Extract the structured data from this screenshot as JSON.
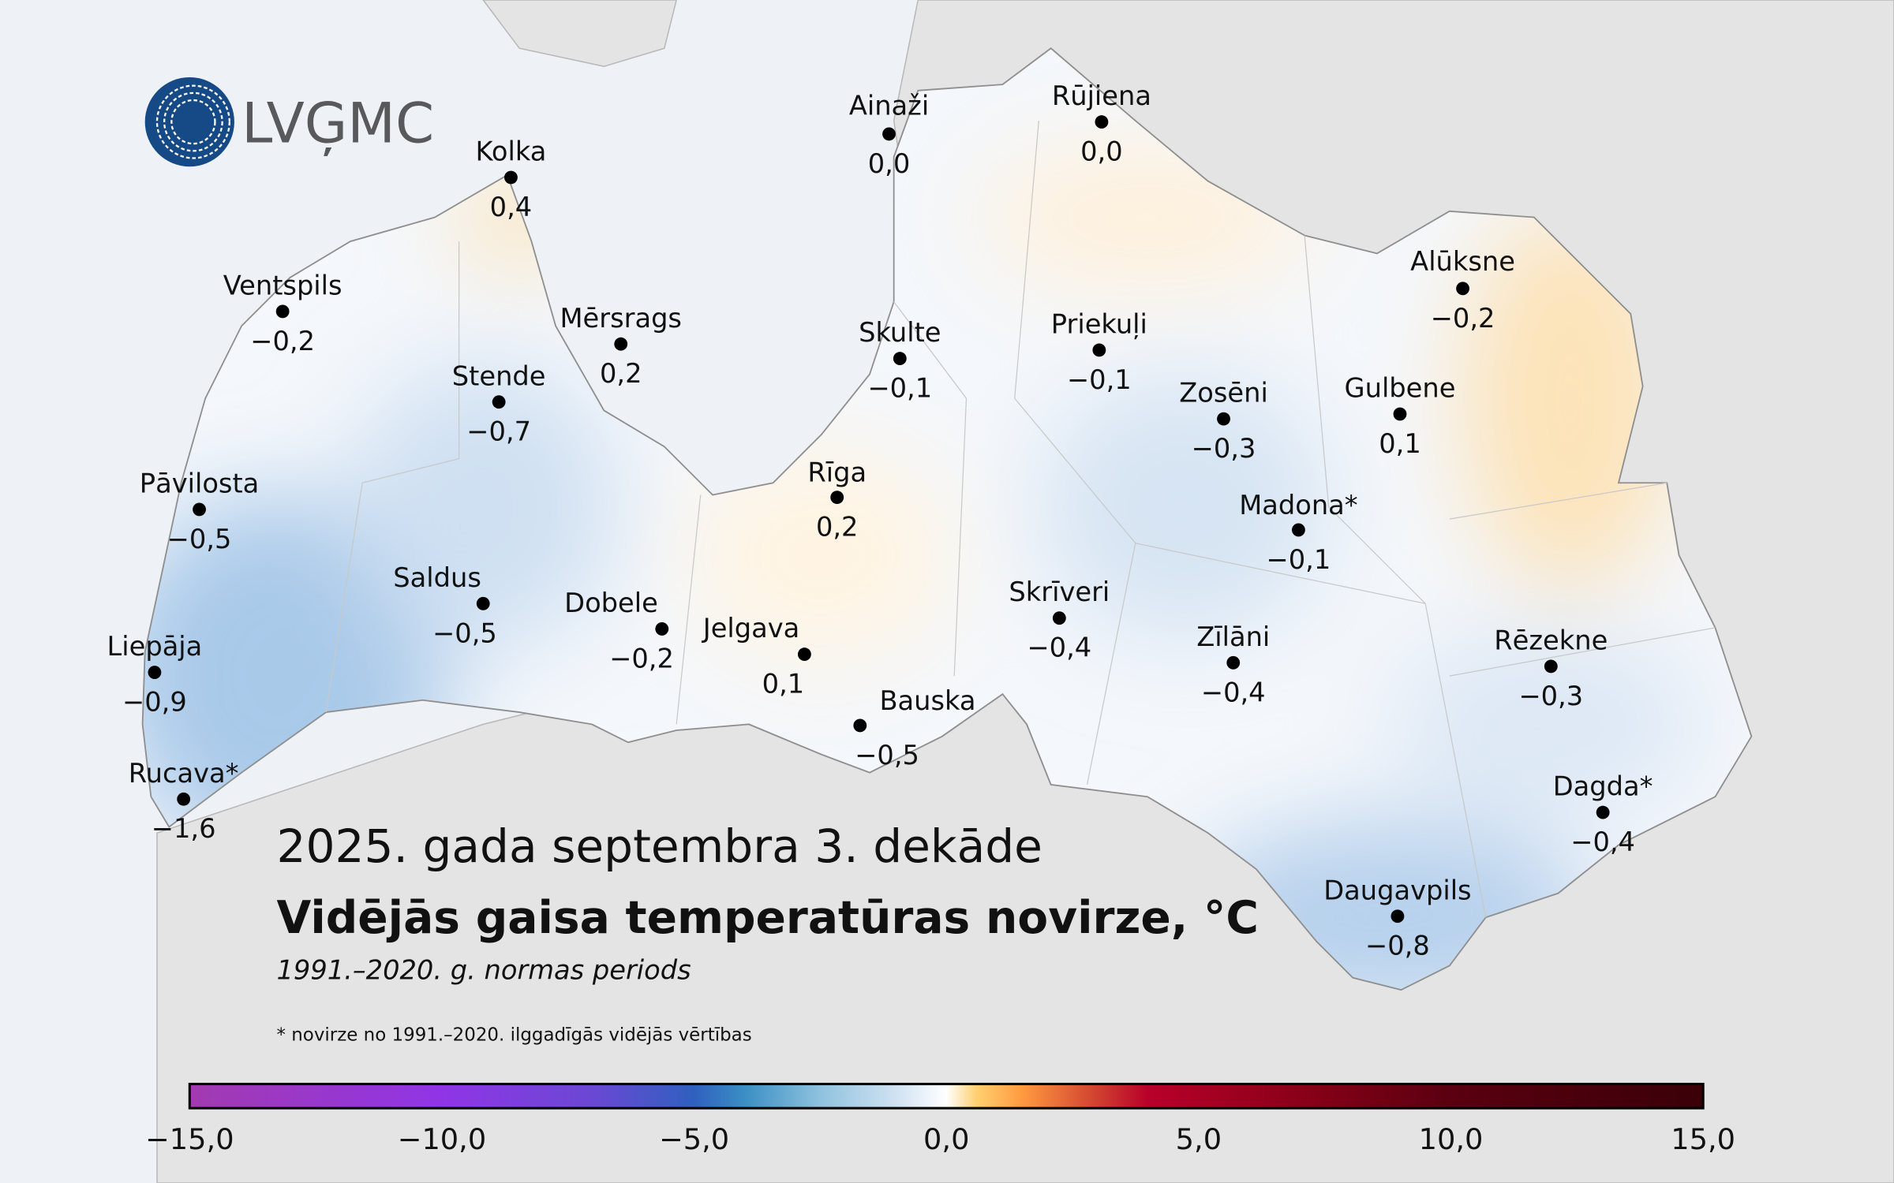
{
  "logo": {
    "text": "LVĢMC",
    "color": "#164a86"
  },
  "title": "2025. gada septembra 3. dekāde",
  "subtitle": "Vidējās gaisa temperatūras novirze, °C",
  "normal_period": "1991.–2020. g. normas periods",
  "footnote": "* novirze no 1991.–2020. ilggadīgās vidējās vērtības",
  "stations": [
    {
      "name": "Kolka",
      "value": "0,4"
    },
    {
      "name": "Ainaži",
      "value": "0,0"
    },
    {
      "name": "Rūjiena",
      "value": "0,0"
    },
    {
      "name": "Ventspils",
      "value": "−0,2"
    },
    {
      "name": "Mērsrags",
      "value": "0,2"
    },
    {
      "name": "Skulte",
      "value": "−0,1"
    },
    {
      "name": "Priekuļi",
      "value": "−0,1"
    },
    {
      "name": "Alūksne",
      "value": "−0,2"
    },
    {
      "name": "Stende",
      "value": "−0,7"
    },
    {
      "name": "Zosēni",
      "value": "−0,3"
    },
    {
      "name": "Gulbene",
      "value": "0,1"
    },
    {
      "name": "Pāvilosta",
      "value": "−0,5"
    },
    {
      "name": "Rīga",
      "value": "0,2"
    },
    {
      "name": "Madona*",
      "value": "−0,1"
    },
    {
      "name": "Saldus",
      "value": "−0,5"
    },
    {
      "name": "Dobele",
      "value": "−0,2"
    },
    {
      "name": "Jelgava",
      "value": "0,1"
    },
    {
      "name": "Skrīveri",
      "value": "−0,4"
    },
    {
      "name": "Zīlāni",
      "value": "−0,4"
    },
    {
      "name": "Rēzekne",
      "value": "−0,3"
    },
    {
      "name": "Liepāja",
      "value": "−0,9"
    },
    {
      "name": "Bauska",
      "value": "−0,5"
    },
    {
      "name": "Rucava*",
      "value": "−1,6"
    },
    {
      "name": "Dagda*",
      "value": "−0,4"
    },
    {
      "name": "Daugavpils",
      "value": "−0,8"
    }
  ],
  "colorbar": {
    "min": -15,
    "max": 15,
    "ticks": [
      "−15,0",
      "−10,0",
      "−5,0",
      "0,0",
      "5,0",
      "10,0",
      "15,0"
    ],
    "stops": [
      {
        "v": -15,
        "c": "#a23ab0"
      },
      {
        "v": -10,
        "c": "#9035e6"
      },
      {
        "v": -7,
        "c": "#6a48d4"
      },
      {
        "v": -5,
        "c": "#2f60bf"
      },
      {
        "v": -4,
        "c": "#3a8fc4"
      },
      {
        "v": -2.5,
        "c": "#8fc2de"
      },
      {
        "v": -1,
        "c": "#d0e2f2"
      },
      {
        "v": 0,
        "c": "#ffffff"
      },
      {
        "v": 0.6,
        "c": "#ffd070"
      },
      {
        "v": 1.5,
        "c": "#ff9a40"
      },
      {
        "v": 3,
        "c": "#d04030"
      },
      {
        "v": 4,
        "c": "#b8002a"
      },
      {
        "v": 7,
        "c": "#8a0018"
      },
      {
        "v": 10,
        "c": "#5a0010"
      },
      {
        "v": 15,
        "c": "#3a0008"
      }
    ]
  },
  "colors": {
    "sea": "#eef2f6",
    "land": "#e4e4e4",
    "border": "#9a9a9a"
  }
}
